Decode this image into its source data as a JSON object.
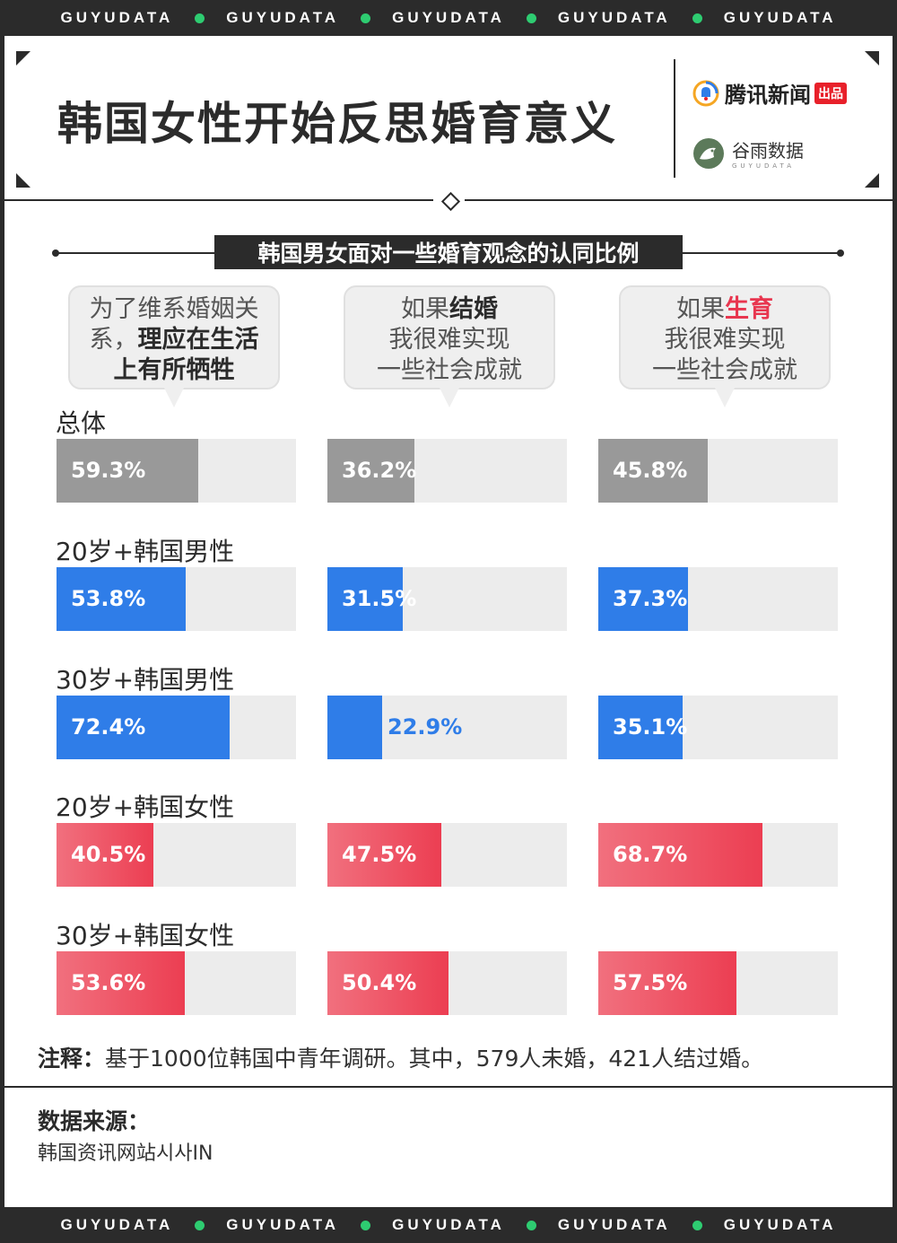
{
  "ticker": {
    "text": "GUYUDATA",
    "dot_color": "#2ecc71"
  },
  "header": {
    "title": "韩国女性开始反思婚育意义",
    "tencent": {
      "name": "腾讯新闻",
      "badge": "出品"
    },
    "guyu": {
      "name": "谷雨数据",
      "sub": "GUYUDATA"
    }
  },
  "chart_data": {
    "type": "bar",
    "title": "韩国男女面对一些婚育观念的认同比例",
    "unit": "%",
    "xlim": [
      0,
      100
    ],
    "statements": [
      {
        "parts": [
          {
            "text": "为了维系婚姻关",
            "bold": false
          },
          {
            "text": "系，",
            "bold": false
          },
          {
            "text": "理应在生活",
            "bold": true
          },
          {
            "text": "上有所牺牲",
            "bold": true
          }
        ]
      },
      {
        "parts": [
          {
            "text": "如果",
            "bold": false
          },
          {
            "text": "结婚",
            "bold": true
          },
          {
            "text": "我很难实现",
            "bold": false
          },
          {
            "text": "一些社会成就",
            "bold": false
          }
        ]
      },
      {
        "parts": [
          {
            "text": "如果",
            "bold": false
          },
          {
            "text": "生育",
            "bold": true,
            "color": "#e8364f"
          },
          {
            "text": "我很难实现",
            "bold": false
          },
          {
            "text": "一些社会成就",
            "bold": false
          }
        ]
      }
    ],
    "groups": [
      {
        "name": "总体",
        "color": "gray",
        "values": [
          59.3,
          36.2,
          45.8
        ],
        "labels": [
          "59.3%",
          "36.2%",
          "45.8%"
        ]
      },
      {
        "name": "20岁+韩国男性",
        "color": "blue",
        "values": [
          53.8,
          31.5,
          37.3
        ],
        "labels": [
          "53.8%",
          "31.5%",
          "37.3%"
        ]
      },
      {
        "name": "30岁+韩国男性",
        "color": "blue",
        "values": [
          72.4,
          22.9,
          35.1
        ],
        "labels": [
          "72.4%",
          "22.9%",
          "35.1%"
        ]
      },
      {
        "name": "20岁+韩国女性",
        "color": "red",
        "values": [
          40.5,
          47.5,
          68.7
        ],
        "labels": [
          "40.5%",
          "47.5%",
          "68.7%"
        ]
      },
      {
        "name": "30岁+韩国女性",
        "color": "red",
        "values": [
          53.6,
          50.4,
          57.5
        ],
        "labels": [
          "53.6%",
          "50.4%",
          "57.5%"
        ]
      }
    ],
    "colors": {
      "gray": "#999999",
      "blue": "#2f7de8",
      "red": "#ec3e52",
      "track": "#ececec"
    }
  },
  "note": {
    "label": "注释：",
    "text": "基于1000位韩国中青年调研。其中，579人未婚，421人结过婚。"
  },
  "source": {
    "label": "数据来源：",
    "text": "韩国资讯网站시사IN"
  }
}
